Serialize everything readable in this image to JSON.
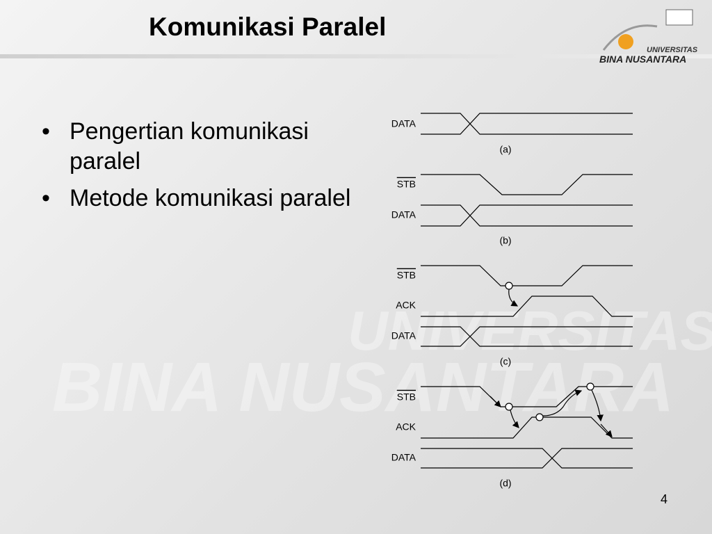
{
  "header": {
    "title": "Komunikasi Paralel",
    "logo": {
      "line1": "UNIVERSITAS",
      "line2": "BINA NUSANTARA"
    }
  },
  "bullets": [
    "Pengertian komunikasi paralel",
    "Metode komunikasi paralel"
  ],
  "diagram": {
    "a": {
      "signals": [
        "DATA"
      ],
      "caption": "(a)"
    },
    "b": {
      "signals": [
        "STB",
        "DATA"
      ],
      "caption": "(b)"
    },
    "c": {
      "signals": [
        "STB",
        "ACK",
        "DATA"
      ],
      "caption": "(c)"
    },
    "d": {
      "signals": [
        "STB",
        "ACK",
        "DATA"
      ],
      "caption": "(d)"
    }
  },
  "watermark": {
    "line1": "UNIVERSITAS",
    "line2": "BINA NUSANTARA"
  },
  "page_number": "4"
}
